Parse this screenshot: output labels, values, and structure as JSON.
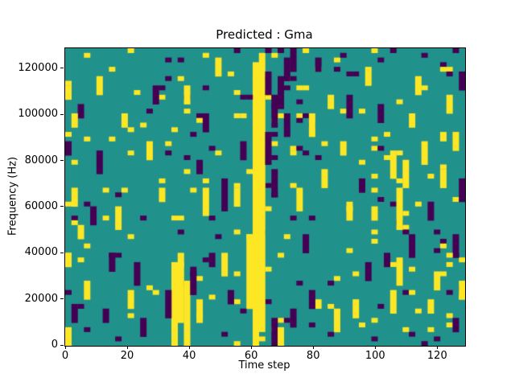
{
  "figure": {
    "background": "#ffffff"
  },
  "chart_data": {
    "type": "heatmap",
    "title": "Predicted : Gma",
    "xlabel": "Time step",
    "ylabel": "Frequency (Hz)",
    "xlim": [
      0,
      129
    ],
    "ylim": [
      0,
      129000
    ],
    "x_ticks": [
      0,
      20,
      40,
      60,
      80,
      100,
      120
    ],
    "y_ticks": [
      0,
      20000,
      40000,
      60000,
      80000,
      100000,
      120000
    ],
    "grid_lines": "off",
    "legend": "none",
    "colormap": {
      "teal": "#21918c",
      "yellow": "#fde725",
      "purple": "#440154"
    },
    "value_meaning": {
      "0": "mid (teal background)",
      "1": "high (yellow)",
      "2": "low (purple)"
    },
    "grid": {
      "cols": 64,
      "rows": 64,
      "background_value": 0,
      "runs_format": "[col, rowStart, rowEnd, value] rows top(high freq)->bottom(0Hz)",
      "runs": [
        [
          30,
          3,
          63,
          1
        ],
        [
          31,
          1,
          59,
          1
        ],
        [
          29,
          40,
          55,
          1
        ],
        [
          32,
          5,
          9,
          2
        ],
        [
          32,
          18,
          24,
          2
        ],
        [
          33,
          10,
          16,
          2
        ],
        [
          34,
          6,
          12,
          2
        ],
        [
          33,
          26,
          31,
          2
        ],
        [
          35,
          2,
          6,
          2
        ],
        [
          35,
          14,
          18,
          2
        ],
        [
          36,
          0,
          4,
          2
        ],
        [
          33,
          58,
          63,
          2
        ],
        [
          34,
          60,
          63,
          1
        ],
        [
          36,
          56,
          59,
          2
        ],
        [
          17,
          46,
          63,
          1
        ],
        [
          18,
          44,
          58,
          1
        ],
        [
          19,
          50,
          63,
          1
        ],
        [
          20,
          47,
          52,
          2
        ],
        [
          16,
          52,
          57,
          2
        ],
        [
          21,
          54,
          58,
          1
        ],
        [
          52,
          22,
          27,
          1
        ],
        [
          53,
          30,
          38,
          1
        ],
        [
          54,
          24,
          29,
          1
        ],
        [
          53,
          45,
          50,
          1
        ],
        [
          55,
          40,
          44,
          2
        ],
        [
          52,
          52,
          56,
          1
        ],
        [
          0,
          8,
          10,
          1
        ],
        [
          0,
          20,
          22,
          2
        ],
        [
          1,
          30,
          33,
          1
        ],
        [
          0,
          44,
          46,
          1
        ],
        [
          1,
          55,
          58,
          2
        ],
        [
          2,
          12,
          14,
          2
        ],
        [
          2,
          38,
          40,
          1
        ],
        [
          0,
          60,
          63,
          1
        ],
        [
          1,
          14,
          16,
          1
        ],
        [
          63,
          5,
          8,
          2
        ],
        [
          62,
          18,
          21,
          1
        ],
        [
          63,
          28,
          32,
          2
        ],
        [
          62,
          40,
          44,
          2
        ],
        [
          63,
          50,
          53,
          1
        ],
        [
          62,
          58,
          60,
          2
        ],
        [
          61,
          10,
          13,
          1
        ],
        [
          25,
          28,
          34,
          2
        ],
        [
          25,
          44,
          48,
          1
        ],
        [
          22,
          30,
          35,
          1
        ],
        [
          22,
          14,
          17,
          2
        ],
        [
          5,
          6,
          9,
          1
        ],
        [
          5,
          22,
          26,
          2
        ],
        [
          45,
          10,
          14,
          2
        ],
        [
          45,
          33,
          36,
          1
        ],
        [
          39,
          14,
          18,
          1
        ],
        [
          39,
          52,
          55,
          2
        ],
        [
          48,
          4,
          7,
          1
        ],
        [
          48,
          46,
          49,
          2
        ],
        [
          27,
          30,
          33,
          1
        ],
        [
          28,
          20,
          23,
          2
        ],
        [
          8,
          34,
          38,
          1
        ],
        [
          11,
          46,
          50,
          2
        ],
        [
          13,
          20,
          23,
          1
        ],
        [
          41,
          26,
          29,
          1
        ],
        [
          43,
          56,
          60,
          1
        ],
        [
          50,
          12,
          15,
          2
        ],
        [
          57,
          20,
          24,
          1
        ],
        [
          58,
          33,
          36,
          2
        ],
        [
          59,
          48,
          51,
          1
        ],
        [
          10,
          52,
          55,
          1
        ],
        [
          7,
          44,
          47,
          2
        ],
        [
          14,
          8,
          11,
          2
        ],
        [
          24,
          2,
          5,
          1
        ],
        [
          37,
          30,
          34,
          1
        ],
        [
          38,
          40,
          43,
          2
        ],
        [
          46,
          54,
          57,
          1
        ],
        [
          56,
          6,
          9,
          1
        ],
        [
          60,
          26,
          29,
          1
        ],
        [
          4,
          34,
          37,
          2
        ],
        [
          9,
          14,
          16,
          1
        ],
        [
          12,
          58,
          61,
          2
        ],
        [
          15,
          30,
          32,
          1
        ],
        [
          23,
          44,
          46,
          2
        ],
        [
          26,
          52,
          54,
          2
        ],
        [
          44,
          20,
          22,
          1
        ],
        [
          47,
          28,
          30,
          2
        ],
        [
          49,
          34,
          36,
          1
        ],
        [
          51,
          44,
          46,
          2
        ],
        [
          55,
          14,
          16,
          1
        ],
        [
          58,
          54,
          56,
          1
        ],
        [
          3,
          50,
          53,
          1
        ],
        [
          6,
          56,
          58,
          2
        ],
        [
          19,
          8,
          11,
          1
        ],
        [
          21,
          24,
          26,
          2
        ],
        [
          40,
          2,
          4,
          2
        ],
        [
          42,
          10,
          12,
          1
        ]
      ],
      "points_format": "[col, row, value]",
      "points": [
        [
          27,
          0,
          2
        ],
        [
          32,
          0,
          2
        ],
        [
          44,
          1,
          2
        ],
        [
          52,
          0,
          2
        ],
        [
          57,
          1,
          2
        ],
        [
          62,
          0,
          2
        ],
        [
          3,
          1,
          1
        ],
        [
          10,
          0,
          1
        ],
        [
          18,
          2,
          2
        ],
        [
          36,
          22,
          1
        ],
        [
          29,
          10,
          2
        ],
        [
          31,
          62,
          1
        ],
        [
          20,
          30,
          1
        ],
        [
          46,
          5,
          2
        ],
        [
          54,
          60,
          1
        ],
        [
          8,
          62,
          2
        ],
        [
          16,
          20,
          1
        ],
        [
          24,
          40,
          2
        ],
        [
          34,
          44,
          1
        ],
        [
          42,
          50,
          2
        ],
        [
          49,
          58,
          1
        ],
        [
          6,
          30,
          1
        ],
        [
          12,
          36,
          2
        ],
        [
          38,
          8,
          1
        ],
        [
          59,
          62,
          2
        ],
        [
          61,
          44,
          1
        ],
        [
          28,
          56,
          2
        ],
        [
          35,
          40,
          1
        ],
        [
          43,
          4,
          2
        ],
        [
          51,
          18,
          1
        ]
      ],
      "noise": {
        "seed": 1337,
        "density": 0.045,
        "yellow_fraction": 0.55
      },
      "approximation": true
    }
  }
}
